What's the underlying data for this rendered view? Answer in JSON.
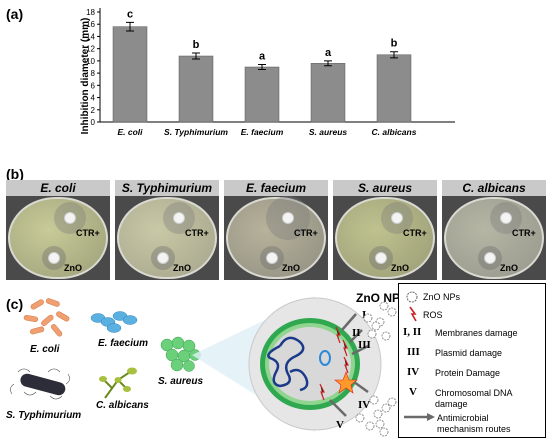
{
  "panels": {
    "a": "(a)",
    "b": "(b)",
    "c": "(c)"
  },
  "chart_data": {
    "type": "bar",
    "categories": [
      "E. coli",
      "S. Typhimurium",
      "E. faecium",
      "S. aureus",
      "C. albicans"
    ],
    "values": [
      15.6,
      10.8,
      9.0,
      9.6,
      11.0
    ],
    "errors": [
      0.7,
      0.5,
      0.4,
      0.4,
      0.5
    ],
    "letters": [
      "c",
      "b",
      "a",
      "a",
      "b"
    ],
    "ylabel": "Inhibition diameter (mm)",
    "ylim": [
      0,
      18
    ],
    "yticks": [
      0,
      2,
      4,
      6,
      8,
      10,
      12,
      14,
      16,
      18
    ],
    "bar_color": "#8c8c8c",
    "grid": false
  },
  "plates": [
    {
      "header": "E. coli",
      "ctr": "CTR+",
      "zno": "ZnO"
    },
    {
      "header": "S. Typhimurium",
      "ctr": "CTR+",
      "zno": "ZnO"
    },
    {
      "header": "E. faecium",
      "ctr": "CTR+",
      "zno": "ZnO"
    },
    {
      "header": "S. aureus",
      "ctr": "CTR+",
      "zno": "ZnO"
    },
    {
      "header": "C. albicans",
      "ctr": "CTR+",
      "zno": "ZnO"
    }
  ],
  "organisms": {
    "ecoli": "E. coli",
    "efaecium": "E. faecium",
    "saureus": "S. aureus",
    "styph": "S. Typhimurium",
    "calbicans": "C. albicans"
  },
  "mechanism": {
    "title": "ZnO NPs",
    "roman": [
      "I",
      "II",
      "III",
      "IV",
      "V"
    ]
  },
  "legend": {
    "zno": "ZnO NPs",
    "ros": "ROS",
    "i_ii_sym": "I, II",
    "i_ii": "Membranes damage",
    "iii_sym": "III",
    "iii": "Plasmid damage",
    "iv_sym": "IV",
    "iv": "Protein Damage",
    "v_sym": "V",
    "v1": "Chromosomal DNA",
    "v2": "damage",
    "routes1": "Antimicrobial",
    "routes2": "mechanism routes"
  }
}
